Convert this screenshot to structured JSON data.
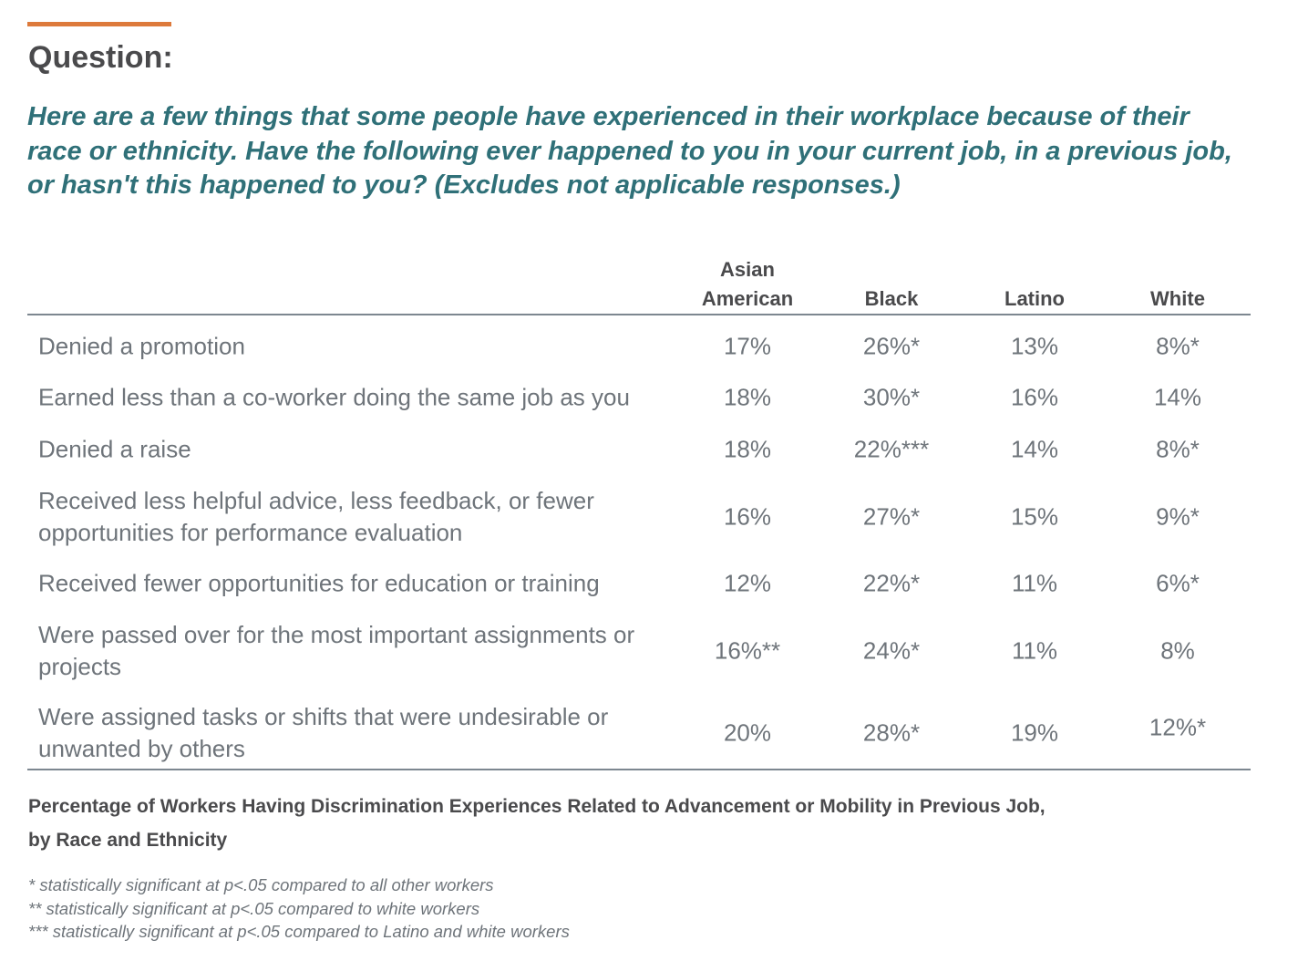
{
  "header": {
    "label": "Question:",
    "question": "Here are a few things that some people have experienced in their workplace because of their race or ethnicity. Have the following ever happened to you in your current job, in a previous job, or hasn't this happened to you? (Excludes not applicable responses.)"
  },
  "colors": {
    "accent": "#dd7a3b",
    "question": "#2f7078",
    "text": "#6e747a",
    "heading": "#4a4a4c"
  },
  "chart_data": {
    "type": "table",
    "title": "Percentage of Workers Having Discrimination Experiences Related to Advancement or Mobility in Previous Job, by Race and Ethnicity",
    "columns": [
      {
        "line1": "Asian",
        "line2": "American"
      },
      {
        "line1": "",
        "line2": "Black"
      },
      {
        "line1": "",
        "line2": "Latino"
      },
      {
        "line1": "",
        "line2": "White"
      }
    ],
    "rows": [
      {
        "label": "Denied a promotion",
        "values": [
          "17%",
          "26%*",
          "13%",
          "8%*"
        ]
      },
      {
        "label": "Earned less than a co-worker doing the same job as you",
        "values": [
          "18%",
          "30%*",
          "16%",
          "14%"
        ]
      },
      {
        "label": "Denied a raise",
        "values": [
          "18%",
          "22%***",
          "14%",
          "8%*"
        ]
      },
      {
        "label": "Received less helpful advice, less feedback, or fewer opportunities for performance evaluation",
        "values": [
          "16%",
          "27%*",
          "15%",
          "9%*"
        ]
      },
      {
        "label": "Received fewer opportunities for education or training",
        "values": [
          "12%",
          "22%*",
          "11%",
          "6%*"
        ]
      },
      {
        "label": "Were passed over for the most important assignments or projects",
        "values": [
          "16%**",
          "24%*",
          "11%",
          "8%"
        ]
      },
      {
        "label": "Were assigned tasks or shifts that were undesirable or unwanted by others",
        "values": [
          "20%",
          "28%*",
          "19%",
          "12%*"
        ]
      }
    ],
    "caption_line1": "Percentage of Workers Having Discrimination Experiences Related to Advancement or Mobility in Previous Job,",
    "caption_line2": "by Race and Ethnicity",
    "notes": [
      "* statistically significant at p<.05 compared to all other workers",
      "** statistically significant at p<.05 compared to white workers",
      "*** statistically significant at p<.05 compared to Latino and white workers"
    ]
  }
}
